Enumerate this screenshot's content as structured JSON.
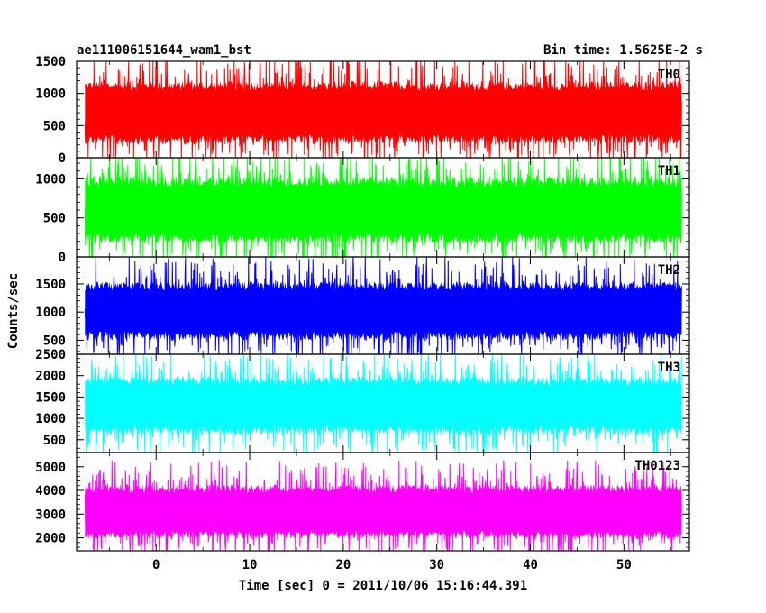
{
  "chart_data": {
    "type": "line",
    "title": "ae111006151644_wam1_bst",
    "subtitle": "Bin time: 1.5625E-2 s",
    "xlabel": "Time [sec] 0 = 2011/10/06 15:16:44.391",
    "ylabel": "Counts/sec",
    "xlim": [
      -8.5,
      57
    ],
    "x_ticks": [
      0,
      10,
      20,
      30,
      40,
      50
    ],
    "x_range_data": [
      -7.6,
      56.2
    ],
    "bin_time": 0.015625,
    "grid": false,
    "panels": [
      {
        "name": "TH0",
        "color": "#ff0000",
        "ylim": [
          0,
          1500
        ],
        "y_ticks": [
          0,
          500,
          1000,
          1500
        ],
        "baseline_mean": 700,
        "envelope_low": 130,
        "envelope_high": 1380,
        "spike_max": 1500
      },
      {
        "name": "TH1",
        "color": "#00ff00",
        "ylim": [
          0,
          1270
        ],
        "y_ticks": [
          0,
          500,
          1000
        ],
        "baseline_mean": 600,
        "envelope_low": 60,
        "envelope_high": 1150,
        "spike_max": 1270
      },
      {
        "name": "TH2",
        "color": "#0000ff",
        "ylim": [
          250,
          1980
        ],
        "y_ticks": [
          500,
          1000,
          1500
        ],
        "baseline_mean": 1020,
        "envelope_low": 380,
        "envelope_high": 1700,
        "spike_max": 1980
      },
      {
        "name": "TH3",
        "color": "#00ffff",
        "ylim": [
          200,
          2500
        ],
        "y_ticks": [
          500,
          1000,
          1500,
          2000,
          2500
        ],
        "baseline_mean": 1300,
        "envelope_low": 480,
        "envelope_high": 2200,
        "spike_max": 2500
      },
      {
        "name": "TH0123",
        "color": "#ff00ff",
        "ylim": [
          1450,
          5600
        ],
        "y_ticks": [
          2000,
          3000,
          4000,
          5000
        ],
        "baseline_mean": 3100,
        "envelope_low": 1800,
        "envelope_high": 4700,
        "spike_max": 5500
      }
    ]
  }
}
